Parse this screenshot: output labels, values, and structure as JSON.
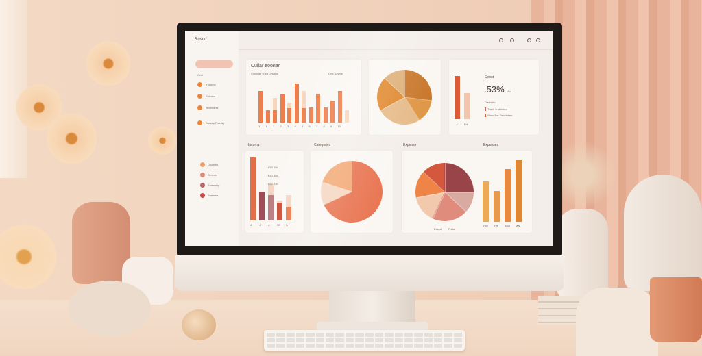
{
  "app": {
    "title": "Rusnd",
    "header_icons": [
      "search-icon",
      "cloud-icon",
      "user-icon",
      "settings-icon"
    ]
  },
  "sidebar": {
    "section_label": "Grat",
    "items": [
      {
        "label": "Yncome",
        "color": "#e8873f"
      },
      {
        "label": "Eulvasa",
        "color": "#e8873f"
      },
      {
        "label": "Tedeisters",
        "color": "#e8873f"
      },
      {
        "label": "Dursep Fowsig",
        "color": "#e8873f"
      }
    ],
    "legend": [
      {
        "label": "Dsuerbo",
        "color": "#eea06a"
      },
      {
        "label": "Drnecs",
        "color": "#d98c7c"
      },
      {
        "label": "Eweoslep",
        "color": "#b9656a"
      },
      {
        "label": "Fwesma",
        "color": "#c74a4a"
      }
    ]
  },
  "cards": {
    "overview": {
      "title": "Cullar eoonar",
      "subtitle": "Conidalr  Yulor Lesalus",
      "legend": "Lets  Kesnte",
      "x_ticks": [
        "1",
        "1",
        "1",
        "2",
        "3",
        "4",
        "5",
        "6",
        "7",
        "8",
        "9",
        "10"
      ],
      "chart_data": {
        "type": "bar",
        "values": [
          45,
          17,
          17,
          41,
          20,
          55,
          20,
          21,
          41,
          21,
          31,
          45,
          0
        ],
        "light": [
          0,
          0,
          35,
          0,
          28,
          0,
          45,
          0,
          0,
          0,
          0,
          0,
          17
        ],
        "colors": {
          "main": "#ee7f4c",
          "light": "#f6cdb0"
        }
      }
    },
    "pie_top": {
      "chart_data": {
        "type": "pie",
        "values": [
          27,
          14,
          26,
          20,
          13
        ],
        "colors": [
          "#c9792e",
          "#e09848",
          "#e6bb8a",
          "#e08a30",
          "#deb07a"
        ]
      }
    },
    "stat": {
      "label": "Ocost",
      "value": ".53%",
      "unit": "Ao",
      "sub_label": "Disdosto",
      "rows": [
        "Thelu  Yudonaso",
        "Waro Ber  Fecelntien"
      ],
      "bar_labels": [
        "-/",
        "Fdl"
      ],
      "chart_data": {
        "type": "bar",
        "values": [
          100,
          60
        ],
        "colors": [
          "#dc5a34",
          "#f1c6ac"
        ]
      }
    }
  },
  "income": {
    "title": "Incoma",
    "lines": [
      "833 S%",
      "£30 3lso",
      "652 S/lo"
    ],
    "x_ticks": [
      "A",
      "4",
      "A",
      "5B",
      "fe"
    ],
    "chart_data": {
      "type": "bar",
      "values": [
        100,
        46,
        40,
        28,
        22
      ],
      "light": [
        0,
        0,
        58,
        32,
        40
      ],
      "colors": [
        "#e26f48",
        "#9e4a55",
        "#b87a80",
        "#cc4a34",
        "#e8774b"
      ]
    }
  },
  "categories": {
    "title": "Categories",
    "chart_data": {
      "type": "pie",
      "values": [
        68,
        12,
        20
      ],
      "colors": [
        "#e8734f",
        "#f4d6c0",
        "#f2a873"
      ]
    }
  },
  "expense": {
    "title": "Expense",
    "title2": "Expenses",
    "pie_labels": [
      "Exspol",
      "Fhdo"
    ],
    "pie": {
      "chart_data": {
        "type": "pie",
        "values": [
          25,
          12,
          20,
          15,
          15,
          13
        ],
        "colors": [
          "#994448",
          "#d9aaa0",
          "#df8c7c",
          "#f3c9ad",
          "#ef8447",
          "#d3583e"
        ]
      }
    },
    "bars": {
      "x_ticks": [
        "Yhw",
        "Yne",
        "Abdl",
        "Mar"
      ],
      "chart_data": {
        "type": "bar",
        "values": [
          58,
          45,
          76,
          90
        ],
        "colors": [
          "#ebaa55",
          "#e89a4c",
          "#e8893f",
          "#e08734"
        ]
      }
    }
  }
}
